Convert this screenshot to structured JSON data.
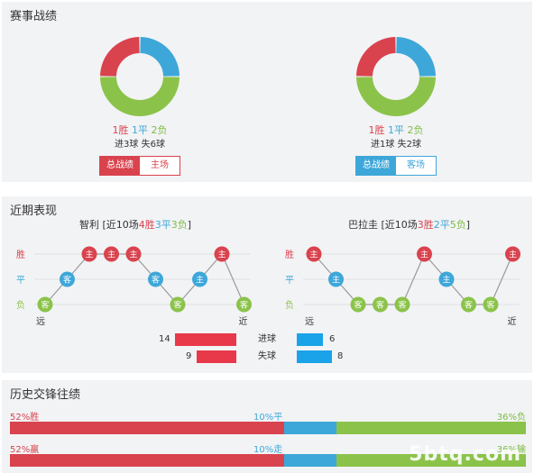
{
  "colors": {
    "win": "#d9434e",
    "draw": "#3ea7d9",
    "loss": "#8bc34a",
    "gray": "#bcbcbc",
    "goals_bar": "#e8394a",
    "goals_bar2": "#1aa3e8"
  },
  "section1": {
    "title": "赛事战绩",
    "left": {
      "win_text": "1胜",
      "draw_text": "1平",
      "loss_text": "2负",
      "goals_text": "进3球  失6球",
      "tab_active": "总战绩",
      "tab_inactive": "主场",
      "ratios": {
        "win": 1,
        "draw": 1,
        "loss": 2
      }
    },
    "right": {
      "win_text": "1胜",
      "draw_text": "1平",
      "loss_text": "2负",
      "goals_text": "进1球  失2球",
      "tab_active": "总战绩",
      "tab_inactive": "客场",
      "ratios": {
        "win": 1,
        "draw": 1,
        "loss": 2
      }
    }
  },
  "section2": {
    "title": "近期表现",
    "left_team": {
      "name": "智利",
      "prefix": " [近10场",
      "w": "4胜",
      "d": "3平",
      "l": "3负",
      "suffix": "]",
      "results": [
        "L",
        "D",
        "W",
        "W",
        "W",
        "D",
        "L",
        "D",
        "W",
        "L"
      ],
      "venues": [
        "客",
        "客",
        "主",
        "主",
        "主",
        "客",
        "客",
        "主",
        "主",
        "客"
      ]
    },
    "right_team": {
      "name": "巴拉圭",
      "prefix": " [近10场",
      "w": "3胜",
      "d": "2平",
      "l": "5负",
      "suffix": "]",
      "results": [
        "W",
        "D",
        "L",
        "L",
        "L",
        "W",
        "D",
        "L",
        "L",
        "W"
      ],
      "venues": [
        "主",
        "主",
        "客",
        "客",
        "客",
        "主",
        "主",
        "客",
        "客",
        "主"
      ]
    },
    "row_labels": {
      "win": "胜",
      "draw": "平",
      "loss": "负"
    },
    "far": "远",
    "near": "近",
    "goals_for": {
      "label": "进球",
      "left": 14,
      "right": 6
    },
    "goals_against": {
      "label": "失球",
      "left": 9,
      "right": 8
    }
  },
  "section3": {
    "title": "历史交锋往绩",
    "row1": {
      "left": "52%胜",
      "mid": "10%平",
      "right": "36%负",
      "values": [
        52,
        10,
        36
      ]
    },
    "row2": {
      "left": "52%赢",
      "mid": "10%走",
      "right": "36%输",
      "values": [
        52,
        10,
        36
      ]
    }
  },
  "watermark": "5btq.com"
}
